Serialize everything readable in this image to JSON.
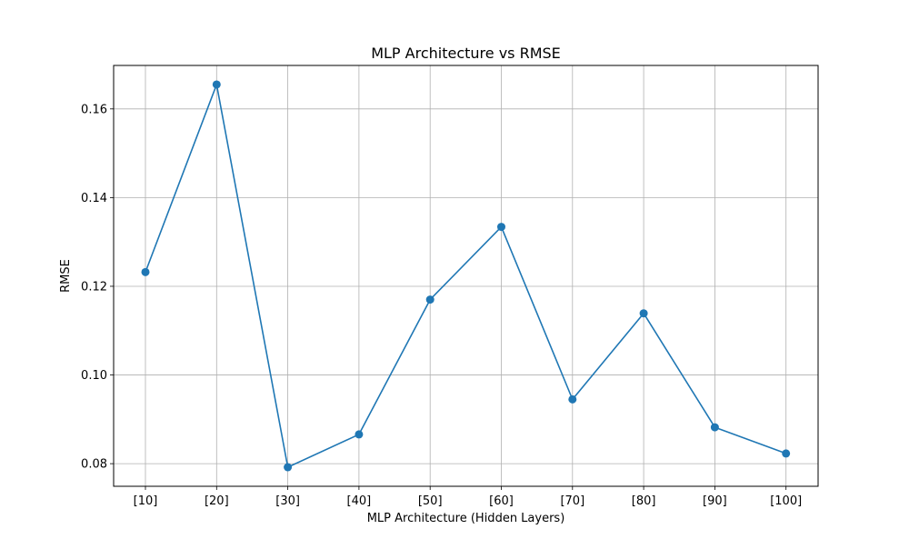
{
  "chart_data": {
    "type": "line",
    "title": "MLP Architecture vs RMSE",
    "xlabel": "MLP Architecture (Hidden Layers)",
    "ylabel": "RMSE",
    "categories": [
      "[10]",
      "[20]",
      "[30]",
      "[40]",
      "[50]",
      "[60]",
      "[70]",
      "[80]",
      "[90]",
      "[100]"
    ],
    "series": [
      {
        "values": [
          0.1232,
          0.1655,
          0.0792,
          0.0866,
          0.117,
          0.1334,
          0.0945,
          0.1139,
          0.0882,
          0.0823
        ],
        "color": "#1f77b4",
        "marker": "circle"
      }
    ],
    "yticks": [
      0.08,
      0.1,
      0.12,
      0.14,
      0.16
    ],
    "ytick_labels": [
      "0.08",
      "0.10",
      "0.12",
      "0.14",
      "0.16"
    ],
    "ylim": [
      0.0749,
      0.1698
    ],
    "grid": true,
    "legend": "none"
  }
}
